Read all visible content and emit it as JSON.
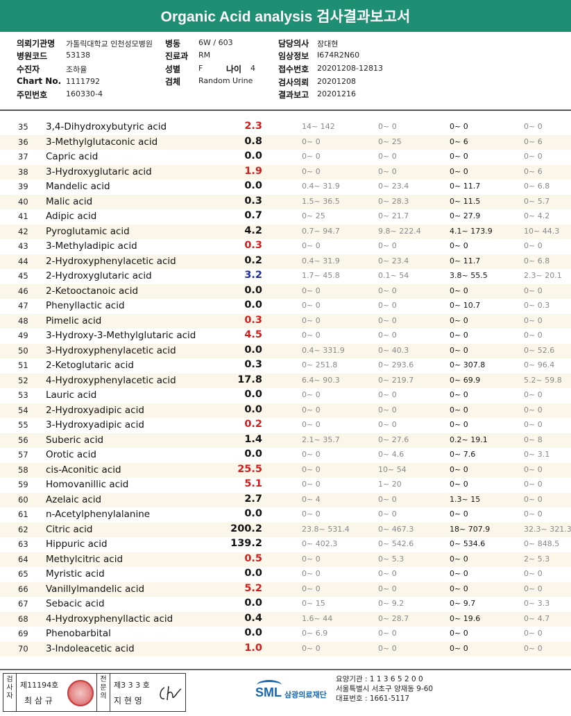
{
  "title": "Organic Acid analysis 검사결과보고서",
  "info": {
    "institution_label": "의뢰기관명",
    "institution_value": "가톨릭대학교 인천성모병원",
    "ward_label": "병동",
    "ward_value": "6W / 603",
    "doctor_label": "담당의사",
    "doctor_value": "장대현",
    "hospital_code_label": "병원코드",
    "hospital_code_value": "53138",
    "dept_label": "진료과",
    "dept_value": "RM",
    "clinical_label": "임상정보",
    "clinical_value": "I674R2N60",
    "patient_label": "수진자",
    "patient_value": "조하율",
    "sex_label": "성별",
    "sex_value": "F",
    "age_label": "나이",
    "age_value": "4",
    "receipt_label": "접수번호",
    "receipt_value": "20201208-12813",
    "chart_label": "Chart No.",
    "chart_value": "1111792",
    "specimen_label": "검체",
    "specimen_value": "Random Urine",
    "request_label": "검사의뢰",
    "request_value": "20201208",
    "resident_label": "주민번호",
    "resident_value": "160330-4",
    "report_label": "결과보고",
    "report_value": "20201216"
  },
  "rows": [
    {
      "no": "35",
      "name": "3,4-Dihydroxybutyric acid",
      "value": "2.3",
      "flag": "high",
      "r1": "14~ 142",
      "r2": "0~ 0",
      "r3": "0~ 0",
      "r4": "0~ 0"
    },
    {
      "no": "36",
      "name": "3-Methylglutaconic acid",
      "value": "0.8",
      "flag": "normal",
      "r1": "0~ 0",
      "r2": "0~ 25",
      "r3": "0~ 6",
      "r4": "0~ 6"
    },
    {
      "no": "37",
      "name": "Capric acid",
      "value": "0.0",
      "flag": "normal",
      "r1": "0~ 0",
      "r2": "0~ 0",
      "r3": "0~ 0",
      "r4": "0~ 0"
    },
    {
      "no": "38",
      "name": "3-Hydroxyglutaric acid",
      "value": "1.9",
      "flag": "high",
      "r1": "0~ 0",
      "r2": "0~ 0",
      "r3": "0~ 0",
      "r4": "0~ 6"
    },
    {
      "no": "39",
      "name": "Mandelic acid",
      "value": "0.0",
      "flag": "normal",
      "r1": "0.4~ 31.9",
      "r2": "0~ 23.4",
      "r3": "0~ 11.7",
      "r4": "0~ 6.8"
    },
    {
      "no": "40",
      "name": "Malic acid",
      "value": "0.3",
      "flag": "normal",
      "r1": "1.5~ 36.5",
      "r2": "0~ 28.3",
      "r3": "0~ 11.5",
      "r4": "0~ 5.7"
    },
    {
      "no": "41",
      "name": "Adipic acid",
      "value": "0.7",
      "flag": "normal",
      "r1": "0~ 25",
      "r2": "0~ 21.7",
      "r3": "0~ 27.9",
      "r4": "0~ 4.2"
    },
    {
      "no": "42",
      "name": "Pyroglutamic acid",
      "value": "4.2",
      "flag": "normal",
      "r1": "0.7~ 94.7",
      "r2": "9.8~ 222.4",
      "r3": "4.1~ 173.9",
      "r4": "10~ 44.3"
    },
    {
      "no": "43",
      "name": "3-Methyladipic acid",
      "value": "0.3",
      "flag": "high",
      "r1": "0~ 0",
      "r2": "0~ 0",
      "r3": "0~ 0",
      "r4": "0~ 0"
    },
    {
      "no": "44",
      "name": "2-Hydroxyphenylacetic acid",
      "value": "0.2",
      "flag": "normal",
      "r1": "0.4~ 31.9",
      "r2": "0~ 23.4",
      "r3": "0~ 11.7",
      "r4": "0~ 6.8"
    },
    {
      "no": "45",
      "name": "2-Hydroxyglutaric acid",
      "value": "3.2",
      "flag": "low",
      "r1": "1.7~ 45.8",
      "r2": "0.1~ 54",
      "r3": "3.8~ 55.5",
      "r4": "2.3~ 20.1"
    },
    {
      "no": "46",
      "name": "2-Ketooctanoic acid",
      "value": "0.0",
      "flag": "normal",
      "r1": "0~ 0",
      "r2": "0~ 0",
      "r3": "0~ 0",
      "r4": "0~ 0"
    },
    {
      "no": "47",
      "name": "Phenyllactic acid",
      "value": "0.0",
      "flag": "normal",
      "r1": "0~ 0",
      "r2": "0~ 0",
      "r3": "0~ 10.7",
      "r4": "0~ 0.3"
    },
    {
      "no": "48",
      "name": "Pimelic acid",
      "value": "0.3",
      "flag": "high",
      "r1": "0~ 0",
      "r2": "0~ 0",
      "r3": "0~ 0",
      "r4": "0~ 0"
    },
    {
      "no": "49",
      "name": "3-Hydroxy-3-Methylglutaric acid",
      "value": "4.5",
      "flag": "high",
      "r1": "0~ 0",
      "r2": "0~ 0",
      "r3": "0~ 0",
      "r4": "0~ 0"
    },
    {
      "no": "50",
      "name": "3-Hydroxyphenylacetic acid",
      "value": "0.0",
      "flag": "normal",
      "r1": "0.4~ 331.9",
      "r2": "0~ 40.3",
      "r3": "0~ 0",
      "r4": "0~ 52.6"
    },
    {
      "no": "51",
      "name": "2-Ketoglutaric acid",
      "value": "0.3",
      "flag": "normal",
      "r1": "0~ 251.8",
      "r2": "0~ 293.6",
      "r3": "0~ 307.8",
      "r4": "0~ 96.4"
    },
    {
      "no": "52",
      "name": "4-Hydroxyphenylacetic acid",
      "value": "17.8",
      "flag": "normal",
      "r1": "6.4~ 90.3",
      "r2": "0~ 219.7",
      "r3": "0~ 69.9",
      "r4": "5.2~ 59.8"
    },
    {
      "no": "53",
      "name": "Lauric acid",
      "value": "0.0",
      "flag": "normal",
      "r1": "0~ 0",
      "r2": "0~ 0",
      "r3": "0~ 0",
      "r4": "0~ 0"
    },
    {
      "no": "54",
      "name": "2-Hydroxyadipic acid",
      "value": "0.0",
      "flag": "normal",
      "r1": "0~ 0",
      "r2": "0~ 0",
      "r3": "0~ 0",
      "r4": "0~ 0"
    },
    {
      "no": "55",
      "name": "3-Hydroxyadipic acid",
      "value": "0.2",
      "flag": "high",
      "r1": "0~ 0",
      "r2": "0~ 0",
      "r3": "0~ 0",
      "r4": "0~ 0"
    },
    {
      "no": "56",
      "name": "Suberic acid",
      "value": "1.4",
      "flag": "normal",
      "r1": "2.1~ 35.7",
      "r2": "0~ 27.6",
      "r3": "0.2~ 19.1",
      "r4": "0~ 8"
    },
    {
      "no": "57",
      "name": "Orotic acid",
      "value": "0.0",
      "flag": "normal",
      "r1": "0~ 0",
      "r2": "0~ 4.6",
      "r3": "0~ 7.6",
      "r4": "0~ 3.1"
    },
    {
      "no": "58",
      "name": "cis-Aconitic acid",
      "value": "25.5",
      "flag": "high",
      "r1": "0~ 0",
      "r2": "10~ 54",
      "r3": "0~ 0",
      "r4": "0~ 0"
    },
    {
      "no": "59",
      "name": "Homovanillic acid",
      "value": "5.1",
      "flag": "high",
      "r1": "0~ 0",
      "r2": "1~ 20",
      "r3": "0~ 0",
      "r4": "0~ 0"
    },
    {
      "no": "60",
      "name": "Azelaic acid",
      "value": "2.7",
      "flag": "normal",
      "r1": "0~ 4",
      "r2": "0~ 0",
      "r3": "1.3~ 15",
      "r4": "0~ 0"
    },
    {
      "no": "61",
      "name": "n-Acetylphenylalanine",
      "value": "0.0",
      "flag": "normal",
      "r1": "0~ 0",
      "r2": "0~ 0",
      "r3": "0~ 0",
      "r4": "0~ 0"
    },
    {
      "no": "62",
      "name": "Citric acid",
      "value": "200.2",
      "flag": "normal",
      "r1": "23.8~ 531.4",
      "r2": "0~ 467.3",
      "r3": "18~ 707.9",
      "r4": "32.3~ 321.3"
    },
    {
      "no": "63",
      "name": "Hippuric acid",
      "value": "139.2",
      "flag": "normal",
      "r1": "0~ 402.3",
      "r2": "0~ 542.6",
      "r3": "0~ 534.6",
      "r4": "0~ 848.5"
    },
    {
      "no": "64",
      "name": "Methylcitric acid",
      "value": "0.5",
      "flag": "high",
      "r1": "0~ 0",
      "r2": "0~ 5.3",
      "r3": "0~ 0",
      "r4": "2~ 5.3"
    },
    {
      "no": "65",
      "name": "Myristic acid",
      "value": "0.0",
      "flag": "normal",
      "r1": "0~ 0",
      "r2": "0~ 0",
      "r3": "0~ 0",
      "r4": "0~ 0"
    },
    {
      "no": "66",
      "name": "Vanillylmandelic acid",
      "value": "5.2",
      "flag": "high",
      "r1": "0~ 0",
      "r2": "0~ 0",
      "r3": "0~ 0",
      "r4": "0~ 0"
    },
    {
      "no": "67",
      "name": "Sebacic acid",
      "value": "0.0",
      "flag": "normal",
      "r1": "0~ 15",
      "r2": "0~ 9.2",
      "r3": "0~ 9.7",
      "r4": "0~ 3.3"
    },
    {
      "no": "68",
      "name": "4-Hydroxyphenyllactic acid",
      "value": "0.4",
      "flag": "normal",
      "r1": "1.6~ 44",
      "r2": "0~ 28.7",
      "r3": "0~ 19.6",
      "r4": "0~ 4.7"
    },
    {
      "no": "69",
      "name": "Phenobarbital",
      "value": "0.0",
      "flag": "normal",
      "r1": "0~ 6.9",
      "r2": "0~ 0",
      "r3": "0~ 0",
      "r4": "0~ 0"
    },
    {
      "no": "70",
      "name": "3-Indoleacetic acid",
      "value": "1.0",
      "flag": "high",
      "r1": "0~ 0",
      "r2": "0~ 0",
      "r3": "0~ 0",
      "r4": "0~ 0"
    }
  ],
  "footer": {
    "inspector_label": "검사자",
    "inspector_license": "제11194호",
    "inspector_name": "최 삼 규",
    "pathologist_label": "전문의",
    "pathologist_license": "제3 3 3 호",
    "pathologist_name": "지 현 영",
    "logo_text": "SML",
    "org_name": "삼광의료재단",
    "agency_code": "요양기관 : 1 1 3 6 5 2 0 0",
    "address": "서울특별시 서초구 양재동 9-60",
    "phone": "대표번호 : 1661-5117"
  },
  "colors": {
    "header": "#1f8f74",
    "high": "#d01c1c",
    "low": "#1a2aa8",
    "logo": "#1565b3"
  }
}
